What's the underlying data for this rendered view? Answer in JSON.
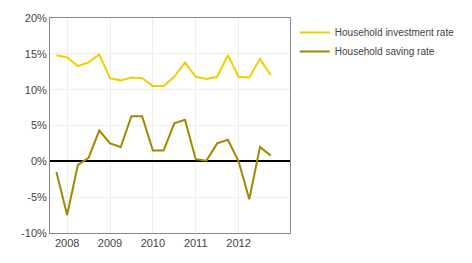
{
  "chart_data": {
    "type": "line",
    "x": [
      2007.75,
      2008.0,
      2008.25,
      2008.5,
      2008.75,
      2009.0,
      2009.25,
      2009.5,
      2009.75,
      2010.0,
      2010.25,
      2010.5,
      2010.75,
      2011.0,
      2011.25,
      2011.5,
      2011.75,
      2012.0,
      2012.25,
      2012.5,
      2012.75
    ],
    "series": [
      {
        "name": "Household investment rate",
        "color": "#F0D000",
        "values": [
          14.8,
          14.5,
          13.3,
          13.8,
          14.9,
          11.6,
          11.3,
          11.7,
          11.6,
          10.5,
          10.5,
          11.8,
          13.8,
          11.8,
          11.5,
          11.8,
          14.8,
          11.8,
          11.7,
          14.3,
          12.0
        ]
      },
      {
        "name": "Household saving rate",
        "color": "#A08800",
        "values": [
          -1.5,
          -7.5,
          -0.5,
          0.5,
          4.3,
          2.5,
          2.0,
          6.3,
          6.3,
          1.5,
          1.5,
          5.3,
          5.8,
          0.3,
          0.1,
          2.5,
          3.0,
          0.0,
          -5.3,
          2.0,
          0.8
        ]
      }
    ],
    "xlim": [
      2007.6,
      2013.2
    ],
    "xticks": [
      2008,
      2009,
      2010,
      2011,
      2012
    ],
    "ylim": [
      -10,
      20
    ],
    "yticks": [
      {
        "value": -10,
        "label": "-10%"
      },
      {
        "value": -5,
        "label": "-5%"
      },
      {
        "value": 0,
        "label": "0%"
      },
      {
        "value": 5,
        "label": "5%"
      },
      {
        "value": 10,
        "label": "10%"
      },
      {
        "value": 15,
        "label": "15%"
      },
      {
        "value": 20,
        "label": "20%"
      }
    ],
    "grid": true,
    "legend": "right"
  }
}
